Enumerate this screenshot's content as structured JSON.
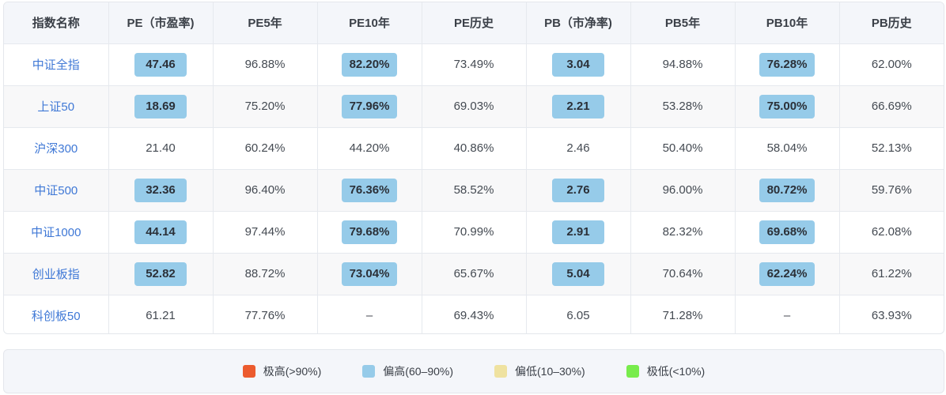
{
  "table": {
    "columns": [
      "指数名称",
      "PE（市盈率)",
      "PE5年",
      "PE10年",
      "PE历史",
      "PB（市净率)",
      "PB5年",
      "PB10年",
      "PB历史"
    ],
    "rows": [
      {
        "name": "中证全指",
        "pe": "47.46",
        "pe5": "96.88%",
        "pe10": "82.20%",
        "peh": "73.49%",
        "pb": "3.04",
        "pb5": "94.88%",
        "pb10": "76.28%",
        "pbh": "62.00%",
        "hl": {
          "pe": true,
          "pe10": true,
          "pb": true,
          "pb10": true
        }
      },
      {
        "name": "上证50",
        "pe": "18.69",
        "pe5": "75.20%",
        "pe10": "77.96%",
        "peh": "69.03%",
        "pb": "2.21",
        "pb5": "53.28%",
        "pb10": "75.00%",
        "pbh": "66.69%",
        "hl": {
          "pe": true,
          "pe10": true,
          "pb": true,
          "pb10": true
        }
      },
      {
        "name": "沪深300",
        "pe": "21.40",
        "pe5": "60.24%",
        "pe10": "44.20%",
        "peh": "40.86%",
        "pb": "2.46",
        "pb5": "50.40%",
        "pb10": "58.04%",
        "pbh": "52.13%",
        "hl": {
          "pe": false,
          "pe10": false,
          "pb": false,
          "pb10": false
        }
      },
      {
        "name": "中证500",
        "pe": "32.36",
        "pe5": "96.40%",
        "pe10": "76.36%",
        "peh": "58.52%",
        "pb": "2.76",
        "pb5": "96.00%",
        "pb10": "80.72%",
        "pbh": "59.76%",
        "hl": {
          "pe": true,
          "pe10": true,
          "pb": true,
          "pb10": true
        }
      },
      {
        "name": "中证1000",
        "pe": "44.14",
        "pe5": "97.44%",
        "pe10": "79.68%",
        "peh": "70.99%",
        "pb": "2.91",
        "pb5": "82.32%",
        "pb10": "69.68%",
        "pbh": "62.08%",
        "hl": {
          "pe": true,
          "pe10": true,
          "pb": true,
          "pb10": true
        }
      },
      {
        "name": "创业板指",
        "pe": "52.82",
        "pe5": "88.72%",
        "pe10": "73.04%",
        "peh": "65.67%",
        "pb": "5.04",
        "pb5": "70.64%",
        "pb10": "62.24%",
        "pbh": "61.22%",
        "hl": {
          "pe": true,
          "pe10": true,
          "pb": true,
          "pb10": true
        }
      },
      {
        "name": "科创板50",
        "pe": "61.21",
        "pe5": "77.76%",
        "pe10": "–",
        "peh": "69.43%",
        "pb": "6.05",
        "pb5": "71.28%",
        "pb10": "–",
        "pbh": "63.93%",
        "hl": {
          "pe": false,
          "pe10": false,
          "pb": false,
          "pb10": false
        }
      }
    ]
  },
  "legend": [
    {
      "label": "极高(>90%)",
      "color": "#ec5b2e"
    },
    {
      "label": "偏高(60–90%)",
      "color": "#96cbe9"
    },
    {
      "label": "偏低(10–30%)",
      "color": "#efe2a0"
    },
    {
      "label": "极低(<10%)",
      "color": "#78ec4c"
    }
  ],
  "colors": {
    "highlight": "#96cbe9",
    "link": "#3f78d6",
    "header_bg": "#f4f6fa"
  }
}
